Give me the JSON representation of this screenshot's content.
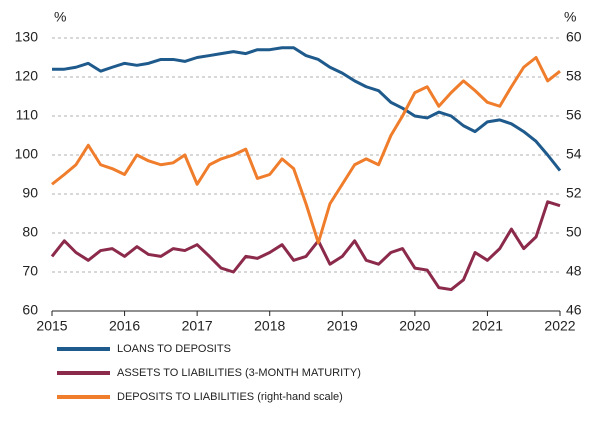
{
  "chart_data": {
    "type": "line",
    "y_label": "%",
    "y2_label": "%",
    "x": [
      2015,
      2015.17,
      2015.33,
      2015.5,
      2015.67,
      2015.83,
      2016,
      2016.17,
      2016.33,
      2016.5,
      2016.67,
      2016.83,
      2017,
      2017.17,
      2017.33,
      2017.5,
      2017.67,
      2017.83,
      2018,
      2018.17,
      2018.33,
      2018.5,
      2018.67,
      2018.83,
      2019,
      2019.17,
      2019.33,
      2019.5,
      2019.67,
      2019.83,
      2020,
      2020.17,
      2020.33,
      2020.5,
      2020.67,
      2020.83,
      2021,
      2021.17,
      2021.33,
      2021.5,
      2021.67,
      2021.83,
      2022
    ],
    "series": [
      {
        "name": "LOANS TO DEPOSITS",
        "color": "#1f5a8c",
        "values": [
          122,
          122,
          122.5,
          123.5,
          121.5,
          122.5,
          123.5,
          123,
          123.5,
          124.5,
          124.5,
          124,
          125,
          125.5,
          126,
          126.5,
          126,
          127,
          127,
          127.5,
          127.5,
          125.5,
          124.5,
          122.5,
          121,
          119,
          117.5,
          116.5,
          113.5,
          112,
          110,
          109.5,
          111,
          110,
          107.5,
          106,
          108.5,
          109,
          108,
          106,
          103.5,
          100,
          96
        ]
      },
      {
        "name": "ASSETS TO LIABILITIES (3-MONTH MATURITY)",
        "color": "#8b2a4a",
        "values": [
          74,
          78,
          75,
          73,
          75.5,
          76,
          74,
          76.5,
          74.5,
          74,
          76,
          75.5,
          77,
          74,
          71,
          70,
          74,
          73.5,
          75,
          77,
          73,
          74,
          78,
          72,
          74,
          78,
          73,
          72,
          75,
          76,
          71,
          70.5,
          66,
          65.5,
          68,
          75,
          73,
          76,
          81,
          76,
          79,
          88,
          87
        ]
      },
      {
        "name": "DEPOSITS TO LIABILITIES (right-hand scale)",
        "color": "#ef7d2b",
        "axis": "y2",
        "values": [
          52.5,
          53,
          53.5,
          54.5,
          53.5,
          53.3,
          53,
          54,
          53.7,
          53.5,
          53.6,
          54,
          52.5,
          53.5,
          53.8,
          54,
          54.3,
          52.8,
          53,
          53.8,
          53.3,
          51.5,
          49.5,
          51.5,
          52.5,
          53.5,
          53.8,
          53.5,
          55,
          56,
          57.2,
          57.5,
          56.5,
          57.2,
          57.8,
          57.3,
          56.7,
          56.5,
          57.5,
          58.5,
          59,
          57.8,
          58.3
        ]
      }
    ],
    "xlim": [
      2015,
      2022
    ],
    "xticks": [
      2015,
      2016,
      2017,
      2018,
      2019,
      2020,
      2021,
      2022
    ],
    "ylim": [
      60,
      130
    ],
    "yticks": [
      60,
      70,
      80,
      90,
      100,
      110,
      120,
      130
    ],
    "y2lim": [
      46,
      60
    ],
    "y2ticks": [
      46,
      48,
      50,
      52,
      54,
      56,
      58,
      60
    ],
    "grid": true,
    "legend": "bottom"
  }
}
